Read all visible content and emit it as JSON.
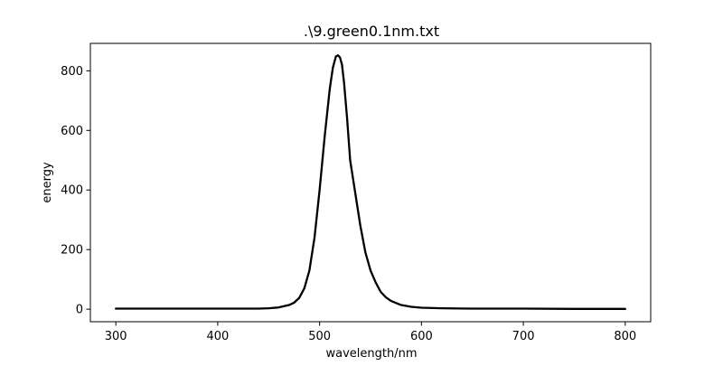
{
  "chart_data": {
    "type": "line",
    "title": ".\\9.green0.1nm.txt",
    "xlabel": "wavelength/nm",
    "ylabel": "energy",
    "xlim": [
      275,
      825
    ],
    "ylim": [
      -42,
      892
    ],
    "xticks": [
      300,
      400,
      500,
      600,
      700,
      800
    ],
    "yticks": [
      0,
      200,
      400,
      600,
      800
    ],
    "grid": false,
    "legend": "none",
    "series": [
      {
        "color": "#000000",
        "x": [
          300,
          350,
          400,
          440,
          450,
          460,
          470,
          475,
          480,
          485,
          490,
          495,
          500,
          505,
          510,
          513,
          516,
          518,
          520,
          522,
          524,
          527,
          530,
          535,
          540,
          545,
          550,
          555,
          560,
          565,
          570,
          580,
          590,
          600,
          620,
          650,
          700,
          750,
          800
        ],
        "y": [
          2,
          2,
          2,
          2,
          3,
          6,
          14,
          22,
          38,
          70,
          130,
          240,
          400,
          580,
          740,
          810,
          848,
          852,
          845,
          820,
          760,
          640,
          500,
          390,
          280,
          190,
          130,
          90,
          58,
          40,
          28,
          14,
          8,
          5,
          3,
          2,
          2,
          1,
          1
        ]
      }
    ]
  }
}
